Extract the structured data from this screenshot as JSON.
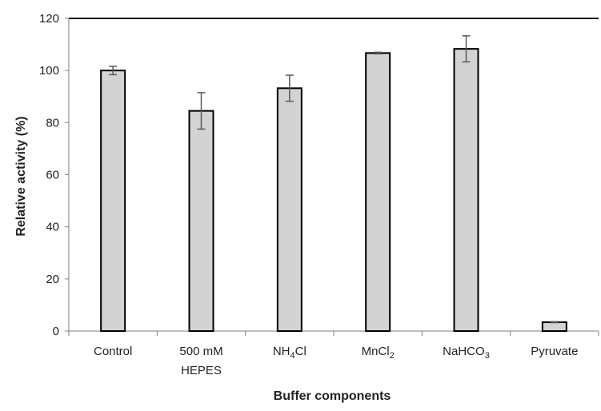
{
  "chart_data": {
    "type": "bar",
    "categories": [
      {
        "label": "Control",
        "line2": "",
        "sub": "",
        "suffix": ""
      },
      {
        "label": "500 mM",
        "line2": "HEPES",
        "sub": "",
        "suffix": ""
      },
      {
        "label": "NH",
        "line2": "",
        "sub": "4",
        "suffix": "Cl"
      },
      {
        "label": "MnCl",
        "line2": "",
        "sub": "2",
        "suffix": ""
      },
      {
        "label": "NaHCO",
        "line2": "",
        "sub": "3",
        "suffix": ""
      },
      {
        "label": "Pyruvate",
        "line2": "",
        "sub": "",
        "suffix": ""
      }
    ],
    "values": [
      100,
      84.5,
      93.2,
      106.7,
      108.3,
      3.4
    ],
    "errors": [
      1.6,
      7.0,
      5.0,
      0.3,
      5.0,
      0.2
    ],
    "xlabel": "Buffer components",
    "ylabel": "Relative activity (%)",
    "ylim": [
      0,
      120
    ],
    "yticks": [
      "0",
      "20",
      "40",
      "60",
      "80",
      "100",
      "120"
    ],
    "grid": false,
    "colors": {
      "bar_fill": "#d3d3d3",
      "bar_stroke": "#000000",
      "error_bar": "#595959",
      "axis": "#7f7f7f",
      "top_line": "#000000"
    }
  }
}
